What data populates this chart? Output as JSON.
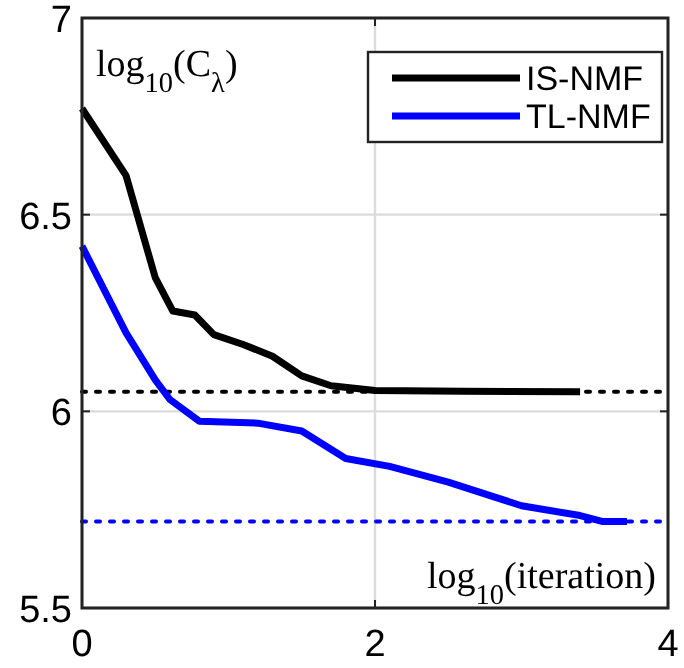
{
  "chart_data": {
    "type": "line",
    "xlabel": "log$_{10}$(iteration)",
    "ylabel": "log$_{10}$(C$_{λ}$)",
    "xlim": [
      0,
      4
    ],
    "xticks": [
      0,
      2,
      4
    ],
    "ylim": [
      5.5,
      7
    ],
    "yticks": [
      5.5,
      6,
      6.5,
      7
    ],
    "grid": true,
    "legend": "top right",
    "line_style": "solid",
    "marker": "none",
    "series": [
      {
        "name": "IS-NMF",
        "color": "#000000",
        "x": [
          0,
          0.3,
          0.5,
          0.62,
          0.77,
          0.9,
          1.1,
          1.3,
          1.5,
          1.7,
          2,
          2.6,
          3.4
        ],
        "values": [
          6.77,
          6.6,
          6.34,
          6.255,
          6.245,
          6.195,
          6.17,
          6.14,
          6.09,
          6.065,
          6.053,
          6.051,
          6.05
        ]
      },
      {
        "name": "TL-NMF",
        "color": "#0000ff",
        "x": [
          0,
          0.3,
          0.5,
          0.6,
          0.8,
          1.2,
          1.5,
          1.8,
          2.1,
          2.5,
          3,
          3.4,
          3.55,
          3.72
        ],
        "values": [
          6.42,
          6.2,
          6.08,
          6.03,
          5.975,
          5.97,
          5.95,
          5.88,
          5.86,
          5.82,
          5.76,
          5.735,
          5.72,
          5.72
        ]
      }
    ],
    "ref_lines": [
      {
        "axis": "y",
        "value": 6.05,
        "color": "#000000",
        "line_style": "dotted"
      },
      {
        "axis": "y",
        "value": 5.72,
        "color": "#0000ff",
        "line_style": "dotted"
      }
    ]
  }
}
